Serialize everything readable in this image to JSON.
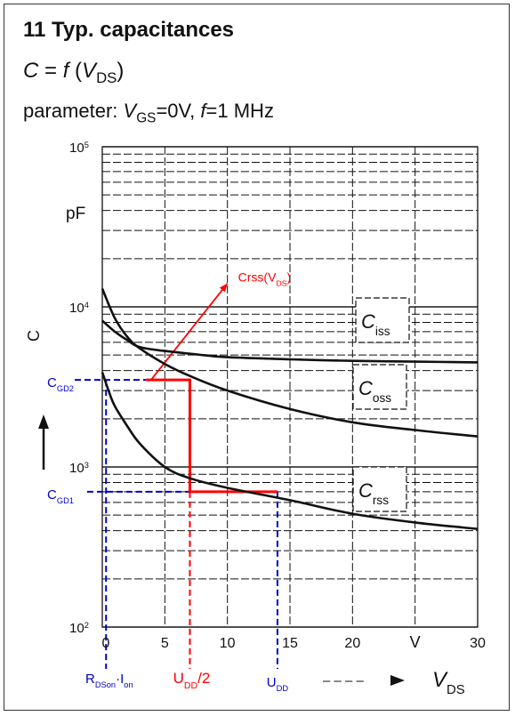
{
  "header": {
    "title": "11 Typ. capacitances",
    "formula": {
      "lhs": "C",
      "eq": " = ",
      "fn": "f",
      "open": " (",
      "var": "V",
      "sub": "DS",
      "close": ")"
    },
    "parameter": {
      "prefix": "parameter: ",
      "var1": "V",
      "sub1": "GS",
      "val1": "=0V, ",
      "var2": "f",
      "val2": "=1 MHz"
    }
  },
  "chart_data": {
    "type": "line",
    "title": "11 Typ. capacitances",
    "xlabel": "V_DS",
    "ylabel": "C",
    "x_unit": "V",
    "y_unit": "pF",
    "xlim": [
      0,
      30
    ],
    "ylim": [
      100,
      100000
    ],
    "y_scale": "log",
    "grid": true,
    "x_ticks": [
      "0",
      "5",
      "10",
      "15",
      "20",
      "V",
      "30"
    ],
    "y_ticks": [
      {
        "base": "10",
        "exp": "2"
      },
      {
        "base": "10",
        "exp": "3"
      },
      {
        "base": "10",
        "exp": "4"
      },
      {
        "base": "10",
        "exp": "5"
      }
    ],
    "series": [
      {
        "name": "Ciss",
        "label_main": "C",
        "label_sub": "iss",
        "x": [
          0,
          1,
          2,
          3,
          5,
          8,
          10,
          15,
          20,
          25,
          30
        ],
        "y": [
          8200,
          7000,
          6200,
          5600,
          5300,
          5000,
          4850,
          4700,
          4600,
          4550,
          4500
        ]
      },
      {
        "name": "Coss",
        "label_main": "C",
        "label_sub": "oss",
        "x": [
          0,
          1,
          2,
          3,
          5,
          7,
          10,
          15,
          20,
          25,
          30
        ],
        "y": [
          13000,
          8500,
          6500,
          5500,
          4400,
          3700,
          3000,
          2300,
          1900,
          1700,
          1550
        ]
      },
      {
        "name": "Crss",
        "label_main": "C",
        "label_sub": "rss",
        "x": [
          0,
          0.5,
          1,
          2,
          3,
          5,
          7,
          10,
          15,
          20,
          25,
          30
        ],
        "y": [
          3900,
          3000,
          2400,
          1800,
          1400,
          1000,
          850,
          740,
          620,
          510,
          450,
          410
        ]
      }
    ],
    "annotations": {
      "crss_arrow": {
        "main": "Crss(V",
        "sub": "DS",
        "close": ")"
      },
      "cgd2": {
        "main": "C",
        "sub": "GD2",
        "value": 3500
      },
      "cgd1": {
        "main": "C",
        "sub": "GD1",
        "value": 700
      },
      "rds": {
        "main": "R",
        "sub1": "DSon",
        "mid": "·I",
        "sub2": "on",
        "x": 0.3
      },
      "udd_half": {
        "main": "U",
        "sub": "DD",
        "rest": "/2",
        "x": 7
      },
      "udd": {
        "main": "U",
        "sub": "DD",
        "x": 14
      },
      "red_step": {
        "x0": 3.5,
        "x1": 7,
        "x2": 14,
        "y_high": 3500,
        "y_low": 700
      },
      "arrow_end": {
        "x": 10,
        "y": 14000
      }
    },
    "axis_labels": {
      "unit_pf": "pF",
      "c": "C",
      "v_unit": "V",
      "vds_main": "V",
      "vds_sub": "DS",
      "arrow_dashes": "– – – –"
    },
    "colors": {
      "curve": "#111111",
      "grid": "#111111",
      "red": "#ff0000",
      "blue": "#0000cc"
    }
  }
}
